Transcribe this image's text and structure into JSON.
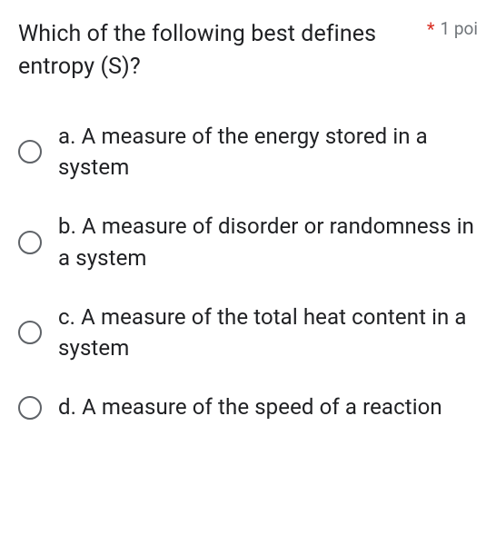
{
  "question": {
    "text": "Which of the following best defines entropy (S)?",
    "required_marker": "*",
    "points_label": "1 poi"
  },
  "options": [
    {
      "label": "a. A measure of the energy stored in a system"
    },
    {
      "label": "b. A measure of disorder or randomness in a system"
    },
    {
      "label": "c. A measure of the total heat content in a system"
    },
    {
      "label": "d. A measure of the speed of a reaction"
    }
  ],
  "colors": {
    "text_primary": "#202124",
    "text_secondary": "#70757a",
    "required": "#d93025",
    "radio_border": "#5f6368",
    "background": "#ffffff"
  },
  "typography": {
    "question_fontsize": 25,
    "option_fontsize": 24,
    "points_fontsize": 19
  }
}
